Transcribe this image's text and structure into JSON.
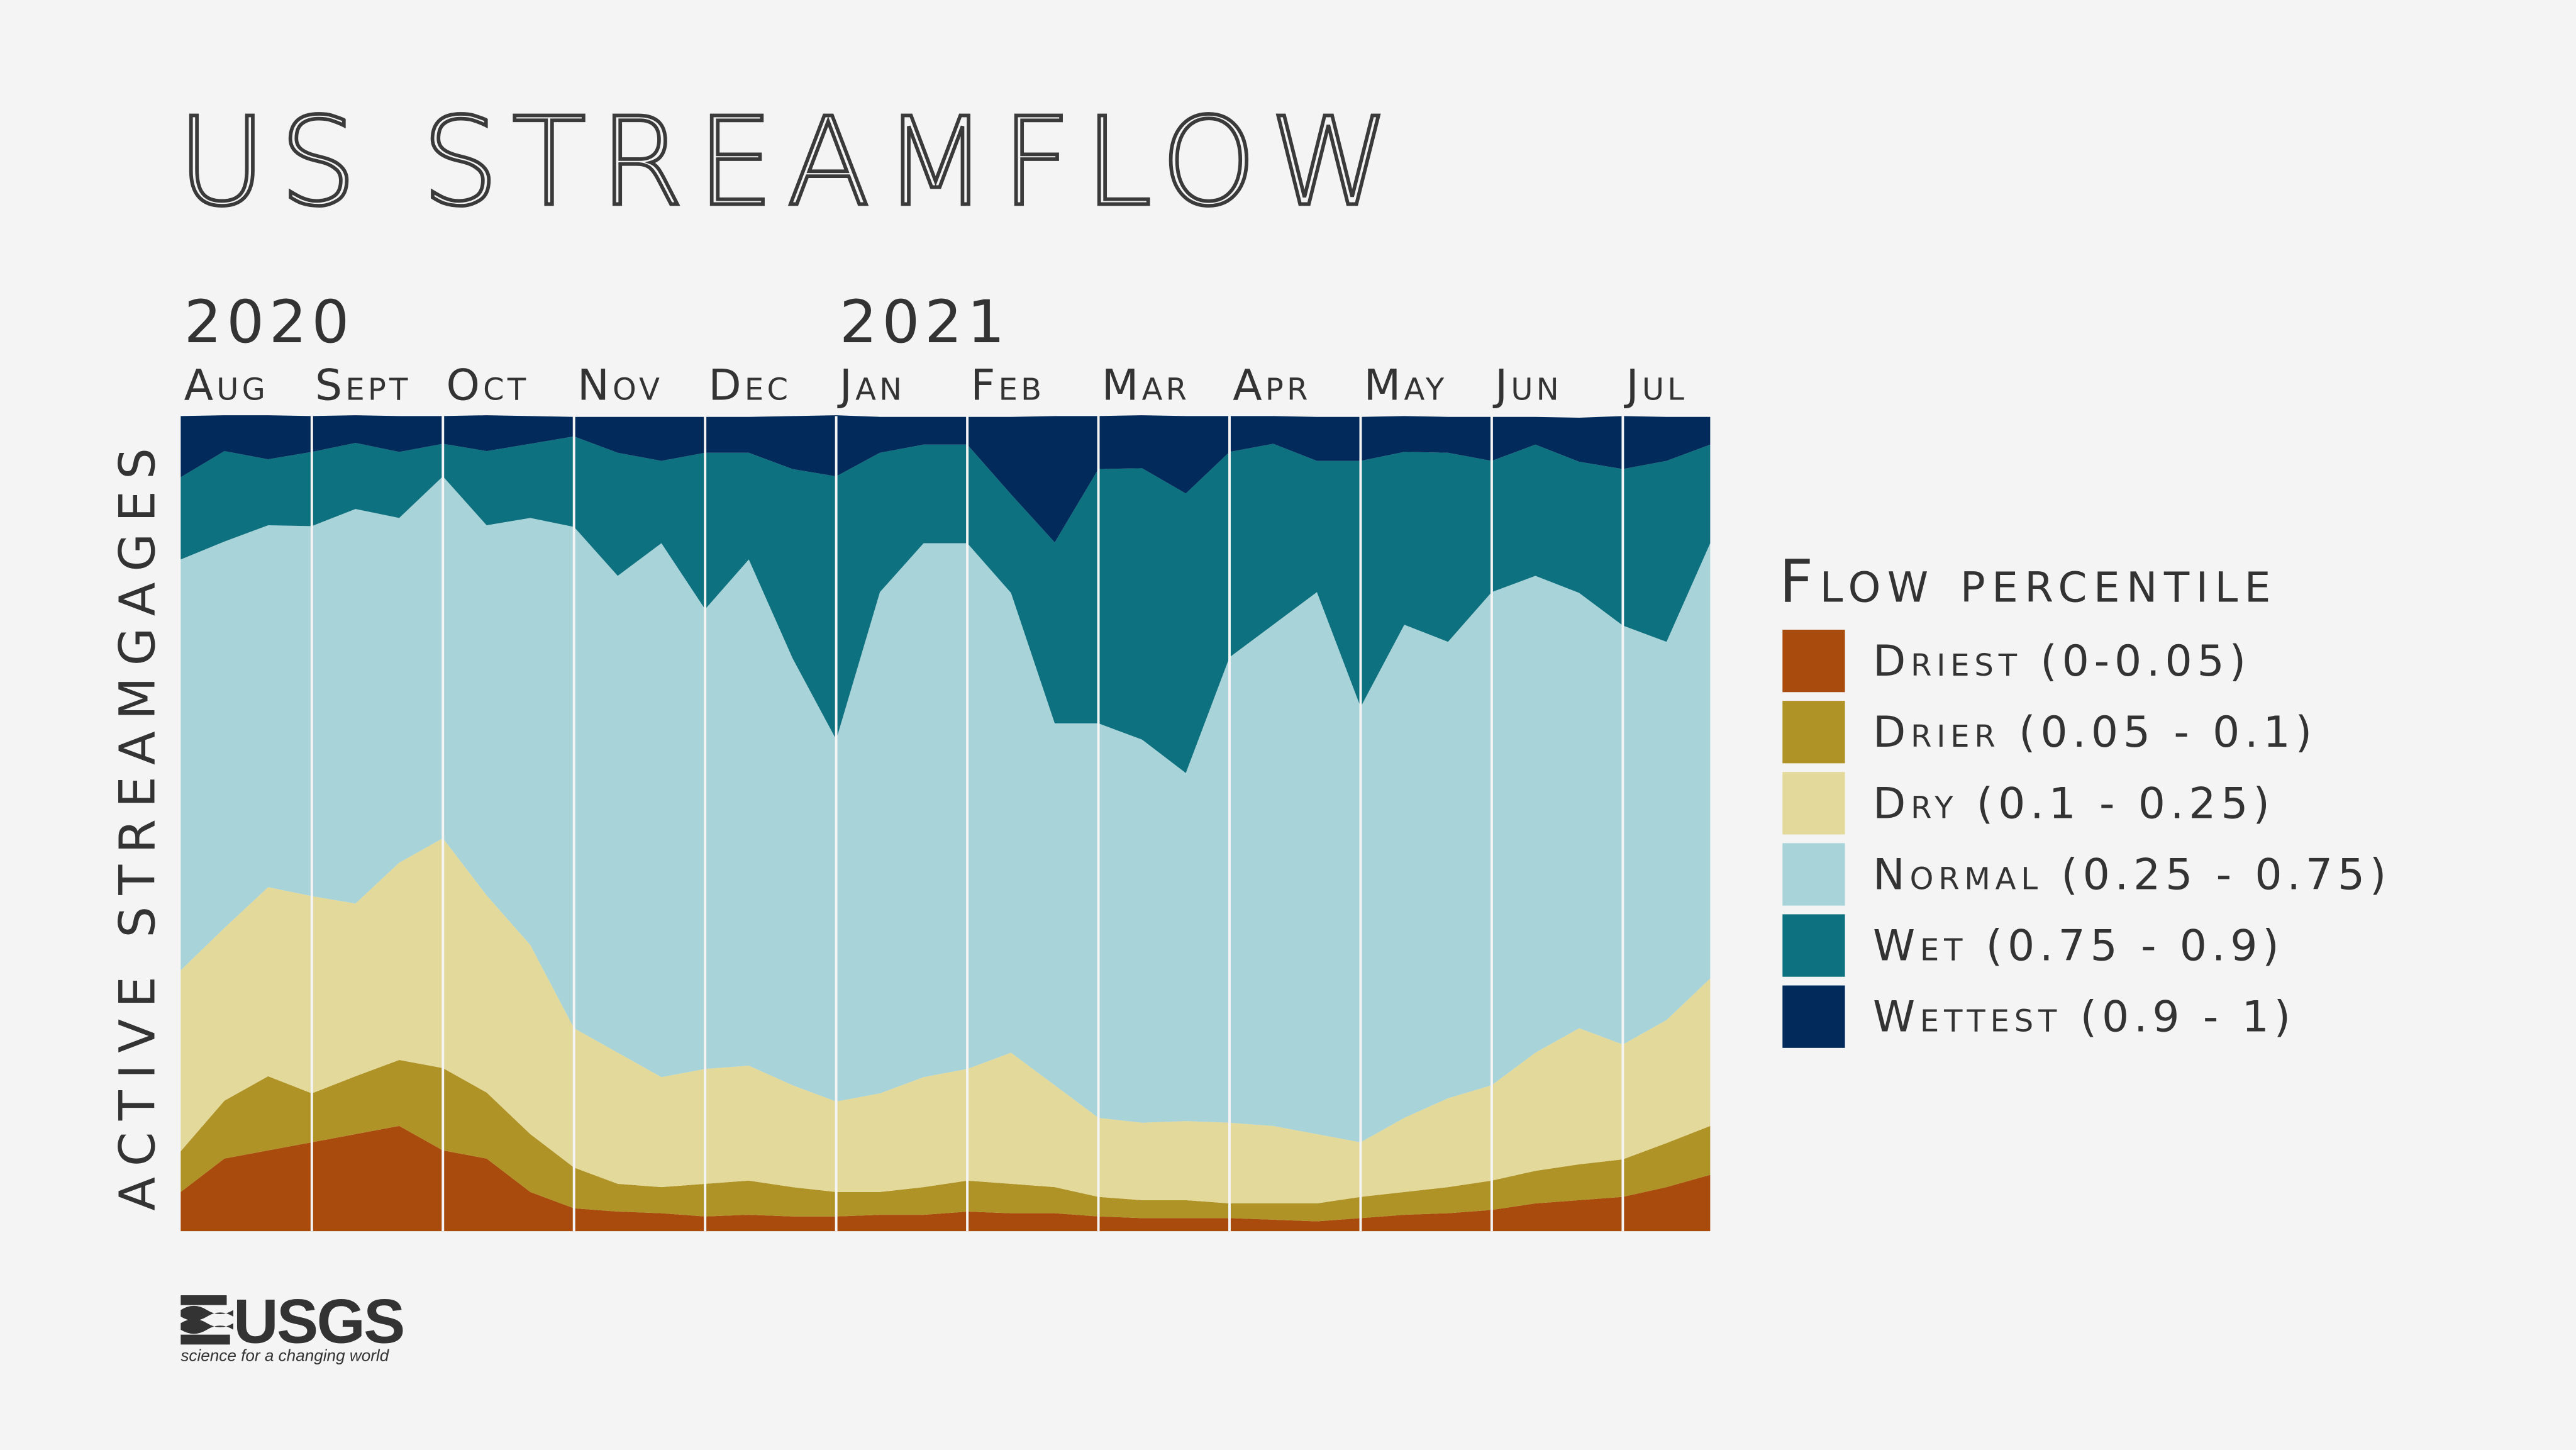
{
  "chart_data": {
    "type": "stacked_area",
    "title": "US STREAMFLOW",
    "y_label": "ACTIVE STREAMGAGES",
    "legend_title": "Flow percentile",
    "legend": "right",
    "ylim": [
      0,
      1
    ],
    "year_categories": [
      "2020",
      null,
      null,
      null,
      null,
      null,
      null,
      null,
      null,
      null,
      null,
      null,
      null,
      null,
      null,
      "2021",
      null,
      null,
      null,
      null,
      null,
      null,
      null,
      null,
      null,
      null,
      null,
      null,
      null,
      null,
      null,
      null,
      null,
      null,
      null,
      null
    ],
    "categories": [
      "Aug",
      null,
      null,
      "Sept",
      null,
      null,
      "Oct",
      null,
      null,
      "Nov",
      null,
      null,
      "Dec",
      null,
      null,
      "Jan",
      null,
      null,
      "Feb",
      null,
      null,
      "Mar",
      null,
      null,
      "Apr",
      null,
      null,
      "May",
      null,
      null,
      "Jun",
      null,
      null,
      "Jul",
      null,
      null
    ],
    "series": [
      {
        "name": "Driest (0-0.05)",
        "color": "#a84b0d",
        "values": [
          0.048,
          0.089,
          0.099,
          0.109,
          0.119,
          0.129,
          0.099,
          0.089,
          0.048,
          0.028,
          0.024,
          0.022,
          0.018,
          0.02,
          0.018,
          0.018,
          0.02,
          0.02,
          0.024,
          0.022,
          0.022,
          0.018,
          0.016,
          0.016,
          0.016,
          0.014,
          0.012,
          0.016,
          0.02,
          0.022,
          0.026,
          0.034,
          0.038,
          0.042,
          0.054,
          0.069
        ]
      },
      {
        "name": "Drier (0.05 - 0.1)",
        "color": "#b09326",
        "values": [
          0.05,
          0.071,
          0.091,
          0.06,
          0.071,
          0.081,
          0.101,
          0.081,
          0.071,
          0.05,
          0.034,
          0.032,
          0.04,
          0.042,
          0.036,
          0.03,
          0.028,
          0.034,
          0.038,
          0.036,
          0.032,
          0.024,
          0.022,
          0.022,
          0.018,
          0.02,
          0.022,
          0.026,
          0.028,
          0.032,
          0.036,
          0.04,
          0.044,
          0.046,
          0.054,
          0.06
        ]
      },
      {
        "name": "Dry (0.1 - 0.25)",
        "color": "#e3d99a",
        "values": [
          0.222,
          0.212,
          0.232,
          0.242,
          0.212,
          0.242,
          0.282,
          0.242,
          0.232,
          0.171,
          0.161,
          0.135,
          0.141,
          0.141,
          0.125,
          0.111,
          0.121,
          0.135,
          0.137,
          0.161,
          0.125,
          0.097,
          0.095,
          0.097,
          0.099,
          0.095,
          0.085,
          0.067,
          0.091,
          0.109,
          0.117,
          0.145,
          0.167,
          0.141,
          0.151,
          0.181
        ]
      },
      {
        "name": "Normal (0.25 - 0.75)",
        "color": "#a8d3d9",
        "values": [
          0.504,
          0.474,
          0.444,
          0.454,
          0.484,
          0.423,
          0.444,
          0.454,
          0.524,
          0.615,
          0.585,
          0.655,
          0.564,
          0.621,
          0.524,
          0.444,
          0.615,
          0.655,
          0.645,
          0.564,
          0.444,
          0.484,
          0.47,
          0.427,
          0.571,
          0.615,
          0.665,
          0.534,
          0.605,
          0.56,
          0.605,
          0.585,
          0.534,
          0.514,
          0.464,
          0.534
        ]
      },
      {
        "name": "Wet (0.75 - 0.9)",
        "color": "#0e7180",
        "values": [
          0.101,
          0.111,
          0.081,
          0.091,
          0.081,
          0.081,
          0.04,
          0.091,
          0.091,
          0.111,
          0.151,
          0.101,
          0.192,
          0.131,
          0.232,
          0.323,
          0.171,
          0.121,
          0.121,
          0.121,
          0.222,
          0.312,
          0.333,
          0.343,
          0.252,
          0.222,
          0.161,
          0.302,
          0.212,
          0.232,
          0.161,
          0.161,
          0.161,
          0.192,
          0.222,
          0.121
        ]
      },
      {
        "name": "Wettest (0.9 - 1)",
        "color": "#022b5b",
        "values": [
          0.075,
          0.044,
          0.054,
          0.044,
          0.034,
          0.044,
          0.034,
          0.044,
          0.034,
          0.024,
          0.044,
          0.054,
          0.044,
          0.044,
          0.065,
          0.075,
          0.044,
          0.034,
          0.034,
          0.095,
          0.155,
          0.065,
          0.065,
          0.095,
          0.044,
          0.034,
          0.054,
          0.054,
          0.044,
          0.044,
          0.054,
          0.034,
          0.054,
          0.065,
          0.054,
          0.034
        ]
      }
    ]
  },
  "logo": {
    "text": "USGS",
    "tagline": "science for a changing world"
  }
}
